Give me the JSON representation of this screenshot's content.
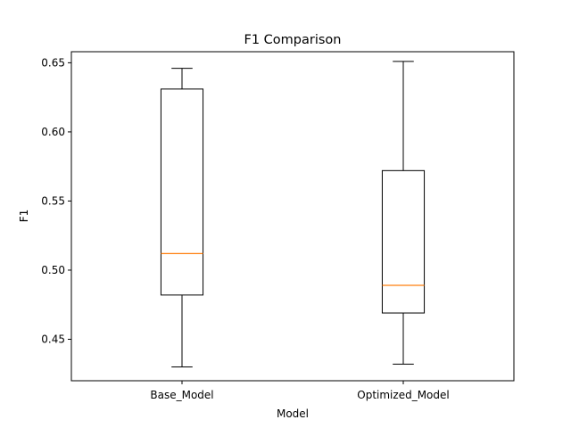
{
  "chart_data": {
    "type": "box",
    "title": "F1 Comparison",
    "xlabel": "Model",
    "ylabel": "F1",
    "ylim": [
      0.42,
      0.658
    ],
    "yticks": [
      0.45,
      0.5,
      0.55,
      0.6,
      0.65
    ],
    "ytick_labels": [
      "0.45",
      "0.50",
      "0.55",
      "0.60",
      "0.65"
    ],
    "categories": [
      "Base_Model",
      "Optimized_Model"
    ],
    "boxes": [
      {
        "category": "Base_Model",
        "whisker_low": 0.43,
        "q1": 0.482,
        "median": 0.512,
        "q3": 0.631,
        "whisker_high": 0.646
      },
      {
        "category": "Optimized_Model",
        "whisker_low": 0.432,
        "q1": 0.469,
        "median": 0.489,
        "q3": 0.572,
        "whisker_high": 0.651
      }
    ],
    "grid": false,
    "colors": {
      "box": "#000000",
      "median": "#ff7f0e"
    }
  }
}
